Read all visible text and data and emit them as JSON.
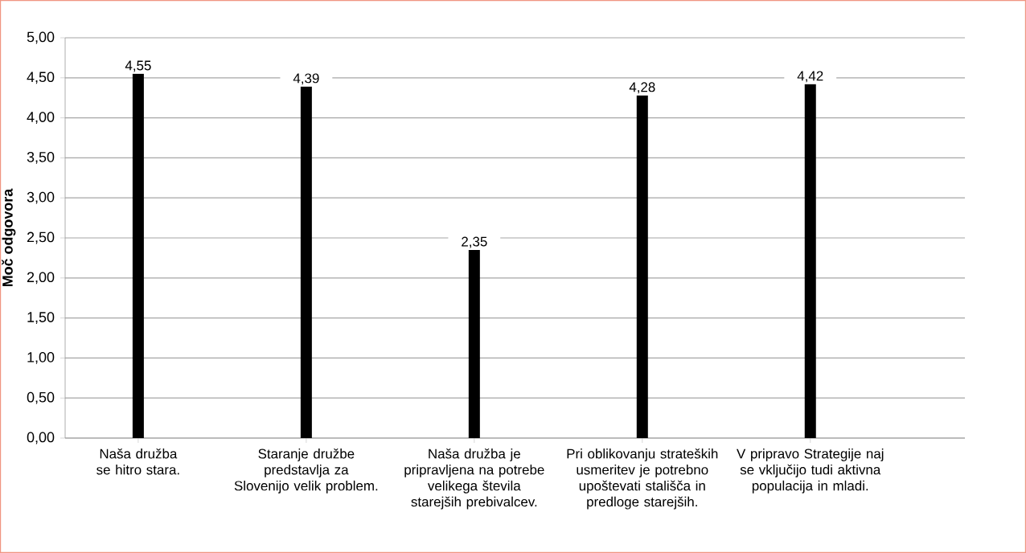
{
  "chart_data": {
    "type": "bar",
    "ylabel": "Moč odgovora",
    "categories": [
      "Naša družba se hitro stara.",
      "Staranje družbe predstavlja za Slovenijo velik problem.",
      "Naša družba je pripravljena na potrebe velikega števila starejših prebivalcev.",
      "Pri oblikovanju strateških usmeritev je potrebno upoštevati stališča in predloge starejših.",
      "V pripravo Strategije naj se vključijo tudi aktivna populacija in mladi."
    ],
    "values": [
      4.55,
      4.39,
      2.35,
      4.28,
      4.42
    ],
    "value_labels": [
      "4,55",
      "4,39",
      "2,35",
      "4,28",
      "4,42"
    ],
    "color": "#000000",
    "ylim": [
      0,
      5
    ],
    "yticks": [
      {
        "value": 0,
        "label": "0,00"
      },
      {
        "value": 0.5,
        "label": "0,50"
      },
      {
        "value": 1,
        "label": "1,00"
      },
      {
        "value": 1.5,
        "label": "1,50"
      },
      {
        "value": 2,
        "label": "2,00"
      },
      {
        "value": 2.5,
        "label": "2,50"
      },
      {
        "value": 3,
        "label": "3,00"
      },
      {
        "value": 3.5,
        "label": "3,50"
      },
      {
        "value": 4,
        "label": "4,00"
      },
      {
        "value": 4.5,
        "label": "4,50"
      },
      {
        "value": 5,
        "label": "5,00"
      }
    ],
    "grid": "y"
  }
}
